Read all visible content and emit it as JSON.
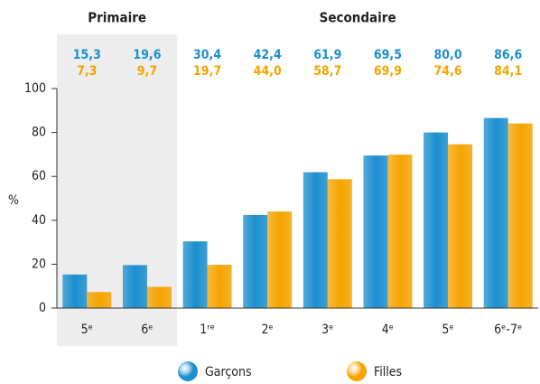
{
  "chart_data": {
    "type": "bar",
    "annotations": [
      "Primaire",
      "Secondaire"
    ],
    "ylabel": "%",
    "categories": [
      "5ᵉ",
      "6ᵉ",
      "1ʳᵉ",
      "2ᵉ",
      "3ᵉ",
      "4ᵉ",
      "5ᵉ",
      "6ᵉ-7ᵉ"
    ],
    "series": [
      {
        "name": "Garçons",
        "color": "#1b8fcf",
        "values": [
          15.3,
          19.6,
          30.4,
          42.4,
          61.9,
          69.5,
          80.0,
          86.6
        ],
        "value_labels": [
          "15,3",
          "19,6",
          "30,4",
          "42,4",
          "61,9",
          "69,5",
          "80,0",
          "86,6"
        ]
      },
      {
        "name": "Filles",
        "color": "#f5a400",
        "values": [
          7.3,
          9.7,
          19.7,
          44.0,
          58.7,
          69.9,
          74.6,
          84.1
        ],
        "value_labels": [
          "7,3",
          "9,7",
          "19,7",
          "44,0",
          "58,7",
          "69,9",
          "74,6",
          "84,1"
        ]
      }
    ],
    "ylim": [
      0,
      100
    ],
    "yticks": [
      0,
      20,
      40,
      60,
      80,
      100
    ],
    "grid": false
  }
}
